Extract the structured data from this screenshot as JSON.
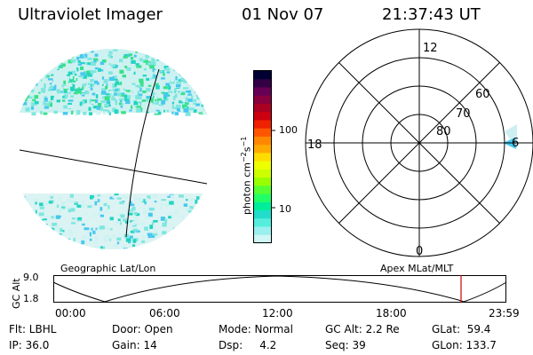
{
  "header": {
    "title": "Ultraviolet Imager",
    "date": "01 Nov 07",
    "time": "21:37:43 UT"
  },
  "colorbar": {
    "unit_label": "photon cm",
    "unit_sup1": "−2",
    "unit_mid": "s",
    "unit_sup2": "−1",
    "tick_labels": [
      "100",
      "10"
    ],
    "colors": [
      "#000033",
      "#330044",
      "#660055",
      "#88003d",
      "#aa0022",
      "#cc0011",
      "#ee2200",
      "#ff5500",
      "#ff8800",
      "#ffaa00",
      "#ffdd00",
      "#eeff00",
      "#ccff00",
      "#99ff00",
      "#55ff33",
      "#22ff66",
      "#00ee99",
      "#22ddcc",
      "#55eedd",
      "#99f0ee",
      "#cff7f5"
    ]
  },
  "polar": {
    "mlt_labels": [
      "12",
      "18",
      "6",
      "0"
    ],
    "lat_labels": [
      "60",
      "70",
      "80"
    ]
  },
  "timeline": {
    "left_label": "Geographic Lat/Lon",
    "right_label": "Apex MLat/MLT",
    "axis_title": "GC Alt",
    "y_ticks": [
      "9.0",
      "1.8"
    ],
    "x_ticks": [
      "00:00",
      "06:00",
      "12:00",
      "18:00",
      "23:59"
    ],
    "marker_color": "#cc0000"
  },
  "status": {
    "row1": [
      "Flt: LBHL",
      "Door: Open",
      "Mode: Normal",
      "GC Alt: 2.2 Re",
      "GLat:  59.4"
    ],
    "row2": [
      "IP: 36.0",
      "Gain: 14",
      "Dsp:     4.2",
      "Seq: 39",
      "GLon: 133.7"
    ]
  },
  "colors": {
    "aurora_light": "#cff3f2",
    "aurora_mid": "#7fe6df",
    "aurora_dark": "#22d4c2",
    "aurora_green": "#39e08a",
    "aurora_blue": "#48c8ef"
  }
}
